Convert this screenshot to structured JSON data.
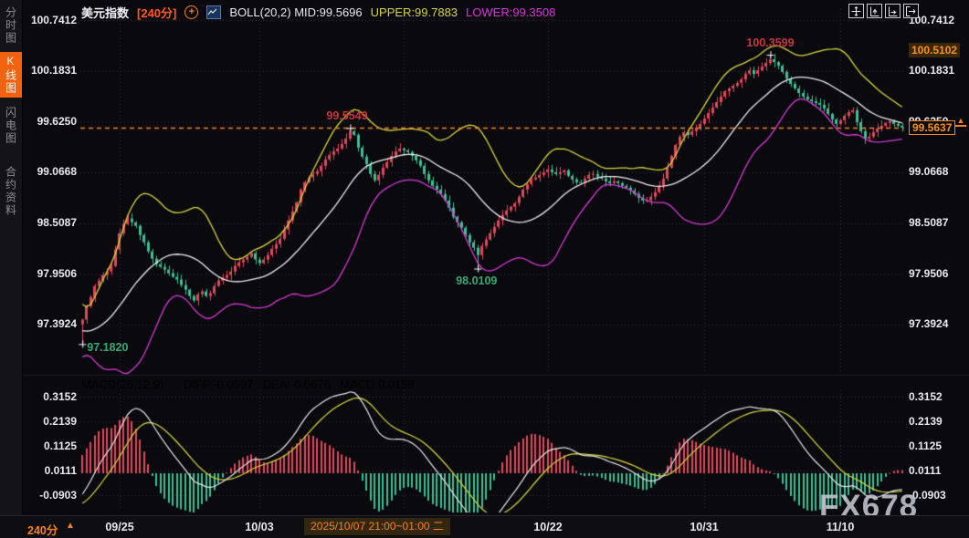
{
  "header": {
    "symbol": "美元指数",
    "period": "[240分]",
    "boll_label": "BOLL(20,2)",
    "mid": "MID:99.5696",
    "upper": "UPPER:99.7883",
    "lower": "LOWER:99.3508"
  },
  "macd_header": {
    "name": "MACD(26,12,9)",
    "diff": "DIFF:-0.0597",
    "dea": "DEA:-0.0676",
    "macd": "MACD:0.0158"
  },
  "sidebar": {
    "items": [
      {
        "label": "分时图",
        "active": false
      },
      {
        "label": "K线图",
        "active": true
      },
      {
        "label": "闪电图",
        "active": false
      },
      {
        "label": "合约资料",
        "active": false
      }
    ]
  },
  "price_axis": {
    "labels": [
      "100.7412",
      "100.1831",
      "99.6250",
      "99.0668",
      "98.5087",
      "97.9506",
      "97.3924"
    ],
    "high_label": "100.5102",
    "current_label": "99.5637"
  },
  "macd_axis": {
    "labels": [
      "0.3152",
      "0.2139",
      "0.1125",
      "0.0111",
      "-0.0903"
    ]
  },
  "footer": {
    "period": "240分",
    "arrow": "▲",
    "highlighted_time": "2025/10/07 21:00~01:00 二"
  },
  "watermark": "FX678",
  "colors": {
    "up": "#e0485a",
    "down": "#3fbf92",
    "boll_upper": "#d9d63c",
    "boll_mid": "#eeeeee",
    "boll_lower": "#d837d8",
    "accent_orange": "#f58220",
    "anno_red": "#c9353f",
    "anno_green": "#3aa876",
    "diff_line": "#e8e8e8",
    "dea_line": "#d9d63c"
  },
  "chart_data": {
    "type": "candlestick",
    "title": "美元指数 240分 K线 + BOLL(20,2) + MACD(26,12,9)",
    "ylim": [
      96.85,
      100.86
    ],
    "price_axis_values": [
      100.7412,
      100.1831,
      99.625,
      99.0668,
      98.5087,
      97.9506,
      97.3924
    ],
    "macd_axis_values": [
      0.3152,
      0.2139,
      0.1125,
      0.0111,
      -0.0903
    ],
    "current_price": 99.5637,
    "boll_params": {
      "period": 20,
      "dev": 2
    },
    "macd_params": {
      "fast": 12,
      "slow": 26,
      "signal": 9
    },
    "x_ticks": [
      {
        "label": "09/25",
        "index": 9
      },
      {
        "label": "10/03",
        "index": 43
      },
      {
        "label": "10/22",
        "index": 113
      },
      {
        "label": "10/31",
        "index": 151
      },
      {
        "label": "11/10",
        "index": 184
      }
    ],
    "extra_gridline_index": 78,
    "annotations": [
      {
        "id": "high-top",
        "label": "100.3599",
        "price": 100.3599,
        "index": 167,
        "placement": "above",
        "color": "red"
      },
      {
        "id": "high-oct",
        "label": "99.5549",
        "price": 99.5549,
        "index": 65,
        "placement": "above",
        "color": "red"
      },
      {
        "id": "low-mid",
        "label": "98.0109",
        "price": 98.0109,
        "index": 96,
        "placement": "below",
        "color": "green"
      },
      {
        "id": "low-start",
        "label": "97.1820",
        "price": 97.182,
        "index": 0,
        "placement": "right",
        "color": "green"
      }
    ],
    "warmup_closes": [
      97.9,
      97.85,
      97.8,
      97.75,
      97.7,
      97.75,
      97.8,
      97.7,
      97.6,
      97.5,
      97.4,
      97.3,
      97.2,
      97.15,
      97.1,
      97.2,
      97.3,
      97.25,
      97.2,
      97.3,
      97.35,
      97.3,
      97.25,
      97.3,
      97.35,
      97.4
    ],
    "closes": [
      97.45,
      97.6,
      97.7,
      97.82,
      97.88,
      97.94,
      97.98,
      98.04,
      98.22,
      98.4,
      98.5,
      98.56,
      98.52,
      98.48,
      98.38,
      98.3,
      98.2,
      98.12,
      98.06,
      98.03,
      98.0,
      97.96,
      97.92,
      97.89,
      97.83,
      97.78,
      97.71,
      97.66,
      97.73,
      97.76,
      97.71,
      97.74,
      97.82,
      97.88,
      97.91,
      97.94,
      97.98,
      98.04,
      98.08,
      98.11,
      98.14,
      98.18,
      98.11,
      98.07,
      98.11,
      98.16,
      98.23,
      98.28,
      98.34,
      98.44,
      98.54,
      98.64,
      98.74,
      98.88,
      98.96,
      99.01,
      99.05,
      99.08,
      99.14,
      99.21,
      99.26,
      99.3,
      99.33,
      99.38,
      99.44,
      99.52,
      99.48,
      99.34,
      99.24,
      99.16,
      99.05,
      98.98,
      99.04,
      99.12,
      99.18,
      99.25,
      99.3,
      99.33,
      99.31,
      99.29,
      99.25,
      99.2,
      99.14,
      99.05,
      98.98,
      98.92,
      98.88,
      98.83,
      98.76,
      98.68,
      98.58,
      98.52,
      98.46,
      98.38,
      98.3,
      98.24,
      98.16,
      98.26,
      98.33,
      98.4,
      98.47,
      98.54,
      98.6,
      98.65,
      98.69,
      98.73,
      98.8,
      98.88,
      98.94,
      98.99,
      99.01,
      99.04,
      99.07,
      99.1,
      99.07,
      99.05,
      99.07,
      99.09,
      99.03,
      98.99,
      98.96,
      98.95,
      99.0,
      99.04,
      99.05,
      99.02,
      99.0,
      98.97,
      98.95,
      98.97,
      98.95,
      98.92,
      98.9,
      98.87,
      98.83,
      98.79,
      98.76,
      98.76,
      98.8,
      98.85,
      98.92,
      99.0,
      99.12,
      99.25,
      99.37,
      99.46,
      99.51,
      99.48,
      99.52,
      99.56,
      99.6,
      99.66,
      99.72,
      99.78,
      99.84,
      99.9,
      99.96,
      99.99,
      100.02,
      100.05,
      100.09,
      100.15,
      100.19,
      100.15,
      100.19,
      100.23,
      100.27,
      100.31,
      100.28,
      100.24,
      100.17,
      100.1,
      100.04,
      99.99,
      99.94,
      99.9,
      99.87,
      99.85,
      99.83,
      99.81,
      99.77,
      99.71,
      99.65,
      99.6,
      99.64,
      99.69,
      99.73,
      99.75,
      99.62,
      99.52,
      99.44,
      99.46,
      99.51,
      99.55,
      99.58,
      99.61,
      99.63,
      99.6,
      99.58,
      99.56
    ]
  }
}
